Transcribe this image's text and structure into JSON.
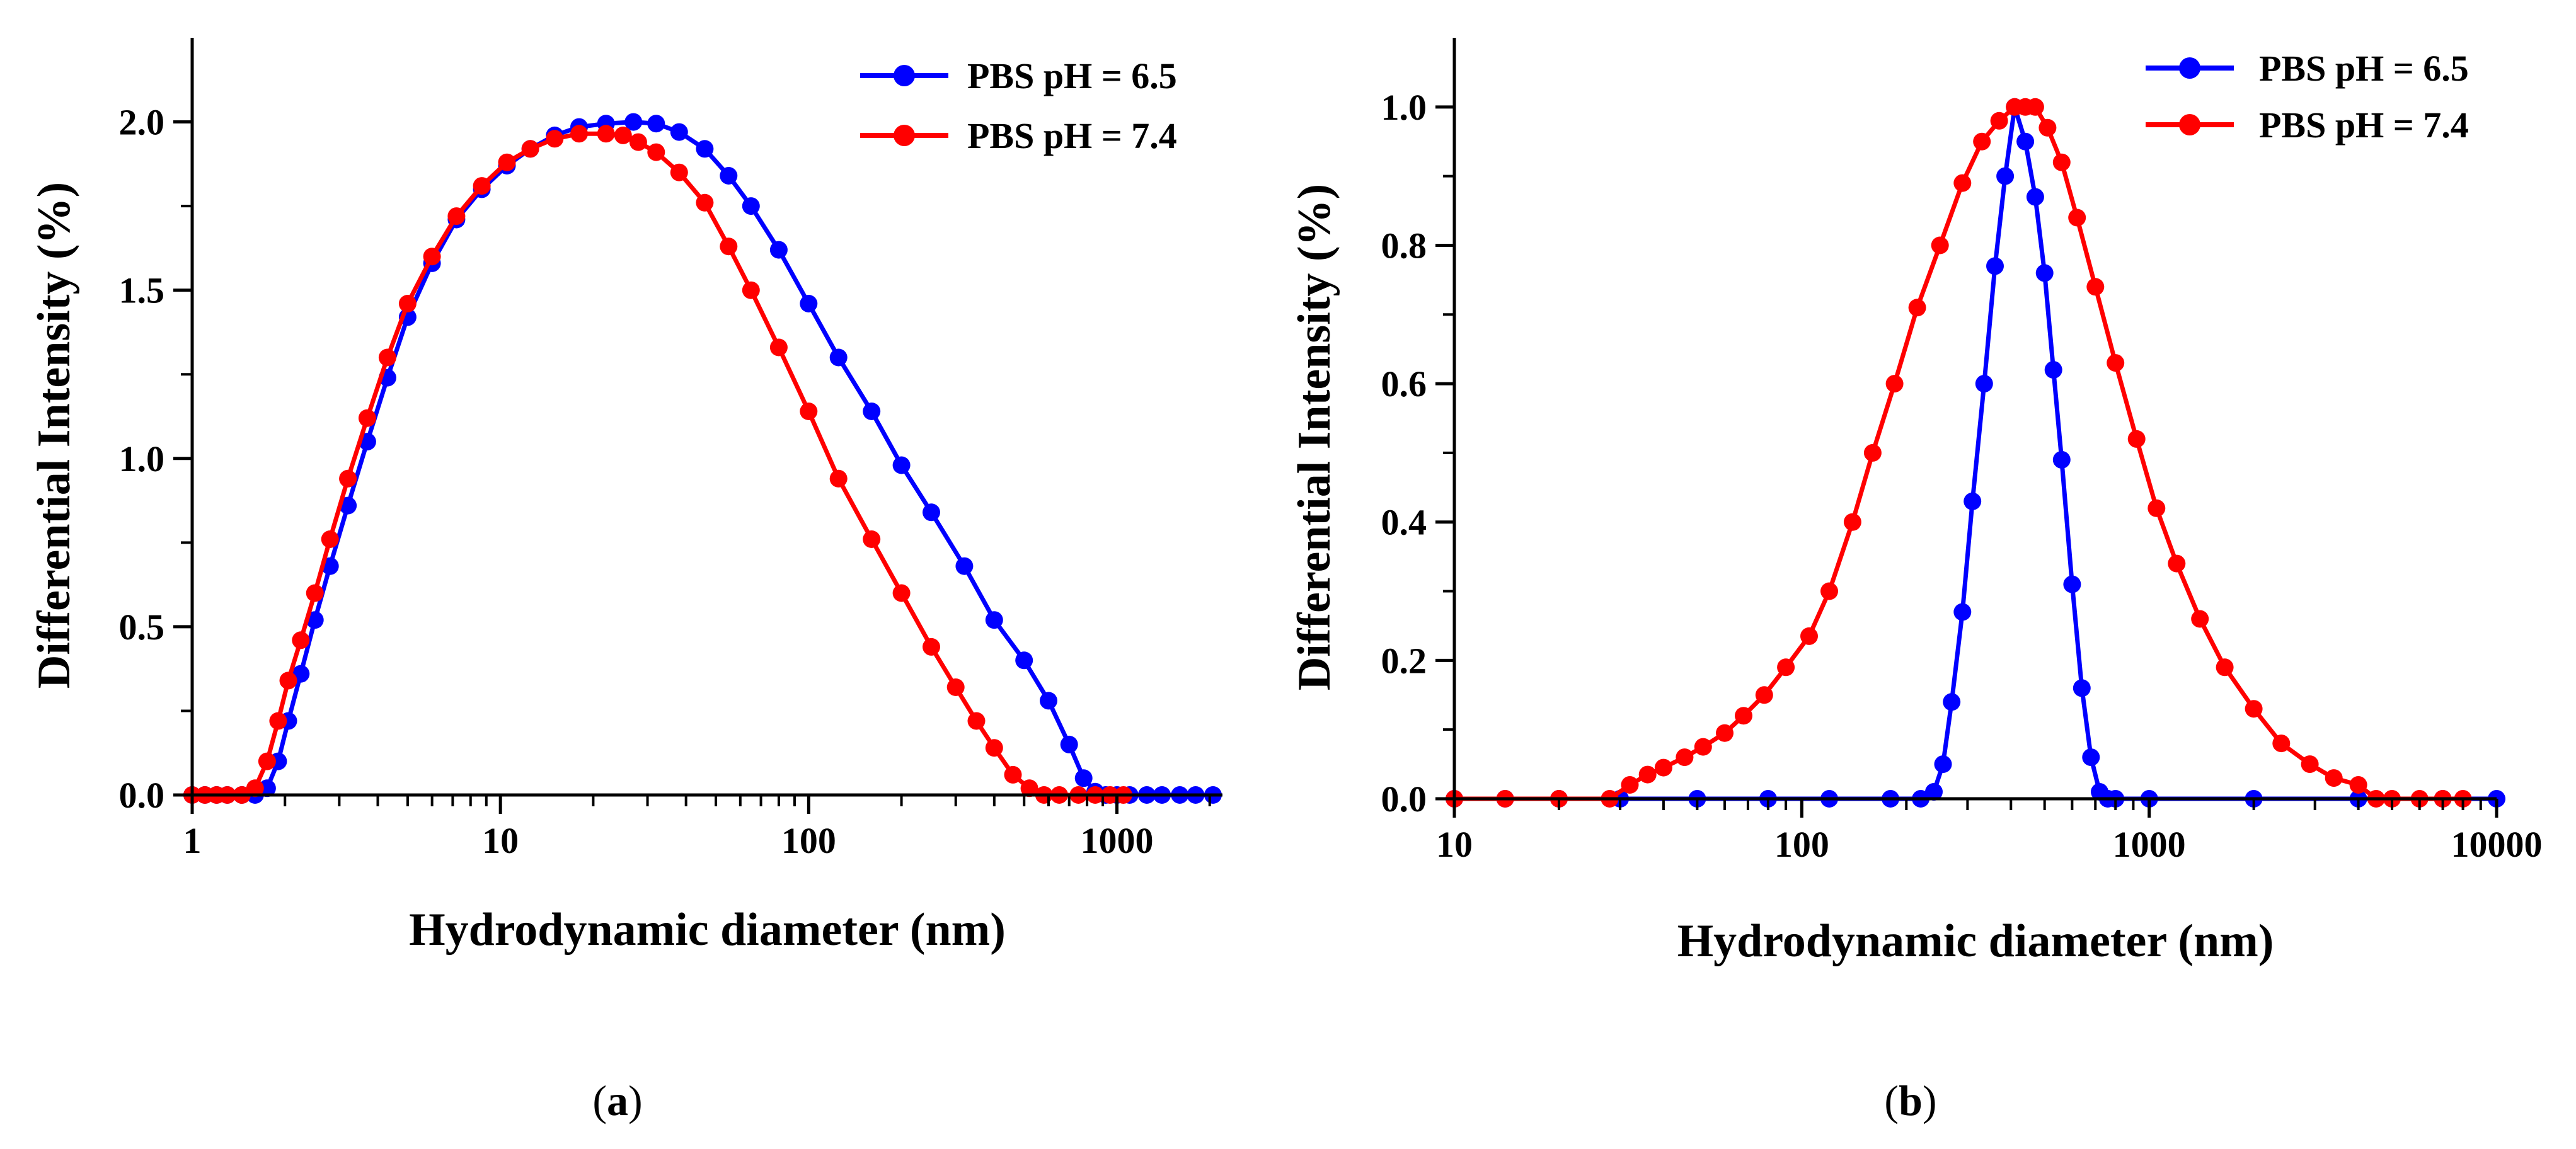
{
  "chart_data": [
    {
      "type": "line",
      "panel_label": "a",
      "title": "",
      "xlabel": "Hydrodynamic diameter (nm)",
      "ylabel": "Differential Intensity (%)",
      "xscale": "log",
      "xlim": [
        1,
        2200
      ],
      "ylim": [
        0,
        2.25
      ],
      "xticks": [
        1,
        10,
        100,
        1000
      ],
      "xtick_labels": [
        "1",
        "10",
        "100",
        "1000"
      ],
      "yticks": [
        0,
        0.5,
        1.0,
        1.5,
        2.0
      ],
      "ytick_labels": [
        "0.0",
        "0.5",
        "1.0",
        "1.5",
        "2.0"
      ],
      "legend_position": "top-right",
      "series": [
        {
          "name": "PBS pH = 6.5",
          "color": "#0000ff",
          "x": [
            1.0,
            1.1,
            1.2,
            1.3,
            1.45,
            1.6,
            1.75,
            1.9,
            2.05,
            2.25,
            2.5,
            2.8,
            3.2,
            3.7,
            4.3,
            5.0,
            6.0,
            7.2,
            8.7,
            10.5,
            12.5,
            15,
            18,
            22,
            27,
            32,
            38,
            46,
            55,
            65,
            80,
            100,
            125,
            160,
            200,
            250,
            320,
            400,
            500,
            600,
            700,
            780,
            850,
            920,
            1000,
            1100,
            1250,
            1400,
            1600,
            1800,
            2050
          ],
          "y": [
            0.0,
            0.0,
            0.0,
            0.0,
            0.0,
            0.0,
            0.02,
            0.1,
            0.22,
            0.36,
            0.52,
            0.68,
            0.86,
            1.05,
            1.24,
            1.42,
            1.58,
            1.71,
            1.8,
            1.87,
            1.92,
            1.96,
            1.985,
            1.995,
            2.0,
            1.995,
            1.97,
            1.92,
            1.84,
            1.75,
            1.62,
            1.46,
            1.3,
            1.14,
            0.98,
            0.84,
            0.68,
            0.52,
            0.4,
            0.28,
            0.15,
            0.05,
            0.01,
            0.0,
            0.0,
            0.0,
            0.0,
            0.0,
            0.0,
            0.0,
            0.0
          ]
        },
        {
          "name": "PBS pH = 7.4",
          "color": "#ff0000",
          "x": [
            1.0,
            1.1,
            1.2,
            1.3,
            1.45,
            1.6,
            1.75,
            1.9,
            2.05,
            2.25,
            2.5,
            2.8,
            3.2,
            3.7,
            4.3,
            5.0,
            6.0,
            7.2,
            8.7,
            10.5,
            12.5,
            15,
            18,
            22,
            25,
            28,
            32,
            38,
            46,
            55,
            65,
            80,
            100,
            125,
            160,
            200,
            250,
            300,
            350,
            400,
            460,
            520,
            580,
            650,
            750,
            850,
            950,
            1050
          ],
          "y": [
            0.0,
            0.0,
            0.0,
            0.0,
            0.0,
            0.02,
            0.1,
            0.22,
            0.34,
            0.46,
            0.6,
            0.76,
            0.94,
            1.12,
            1.3,
            1.46,
            1.6,
            1.72,
            1.81,
            1.88,
            1.92,
            1.95,
            1.965,
            1.965,
            1.96,
            1.94,
            1.91,
            1.85,
            1.76,
            1.63,
            1.5,
            1.33,
            1.14,
            0.94,
            0.76,
            0.6,
            0.44,
            0.32,
            0.22,
            0.14,
            0.06,
            0.02,
            0.0,
            0.0,
            0.0,
            0.0,
            0.0,
            0.0
          ]
        }
      ]
    },
    {
      "type": "line",
      "panel_label": "b",
      "title": "",
      "xlabel": "Hydrodynamic diameter (nm)",
      "ylabel": "Differential Intensity (%)",
      "xscale": "log",
      "xlim": [
        10,
        10000
      ],
      "ylim": [
        0,
        1.1
      ],
      "xticks": [
        10,
        100,
        1000,
        10000
      ],
      "xtick_labels": [
        "10",
        "100",
        "1000",
        "10000"
      ],
      "yticks": [
        0,
        0.2,
        0.4,
        0.6,
        0.8,
        1.0
      ],
      "ytick_labels": [
        "0.0",
        "0.2",
        "0.4",
        "0.6",
        "0.8",
        "1.0"
      ],
      "legend_position": "top-right",
      "series": [
        {
          "name": "PBS pH = 6.5",
          "color": "#0000ff",
          "x": [
            10,
            14,
            20,
            30,
            50,
            80,
            120,
            180,
            220,
            240,
            255,
            270,
            290,
            310,
            335,
            360,
            385,
            410,
            440,
            470,
            500,
            530,
            560,
            600,
            640,
            680,
            720,
            760,
            800,
            1000,
            2000,
            4000,
            7000,
            10000
          ],
          "y": [
            0.0,
            0.0,
            0.0,
            0.0,
            0.0,
            0.0,
            0.0,
            0.0,
            0.0,
            0.01,
            0.05,
            0.14,
            0.27,
            0.43,
            0.6,
            0.77,
            0.9,
            1.0,
            0.95,
            0.87,
            0.76,
            0.62,
            0.49,
            0.31,
            0.16,
            0.06,
            0.01,
            0.0,
            0.0,
            0.0,
            0.0,
            0.0,
            0.0,
            0.0
          ]
        },
        {
          "name": "PBS pH = 7.4",
          "color": "#ff0000",
          "x": [
            10,
            14,
            20,
            28,
            32,
            36,
            40,
            46,
            52,
            60,
            68,
            78,
            90,
            105,
            120,
            140,
            160,
            185,
            215,
            250,
            290,
            330,
            370,
            410,
            440,
            470,
            510,
            560,
            620,
            700,
            800,
            920,
            1050,
            1200,
            1400,
            1650,
            2000,
            2400,
            2900,
            3400,
            4000,
            4500,
            5000,
            6000,
            7000,
            8000
          ],
          "y": [
            0.0,
            0.0,
            0.0,
            0.0,
            0.02,
            0.035,
            0.045,
            0.06,
            0.075,
            0.095,
            0.12,
            0.15,
            0.19,
            0.235,
            0.3,
            0.4,
            0.5,
            0.6,
            0.71,
            0.8,
            0.89,
            0.95,
            0.98,
            1.0,
            1.0,
            1.0,
            0.97,
            0.92,
            0.84,
            0.74,
            0.63,
            0.52,
            0.42,
            0.34,
            0.26,
            0.19,
            0.13,
            0.08,
            0.05,
            0.03,
            0.02,
            0.0,
            0.0,
            0.0,
            0.0,
            0.0
          ]
        }
      ]
    }
  ]
}
